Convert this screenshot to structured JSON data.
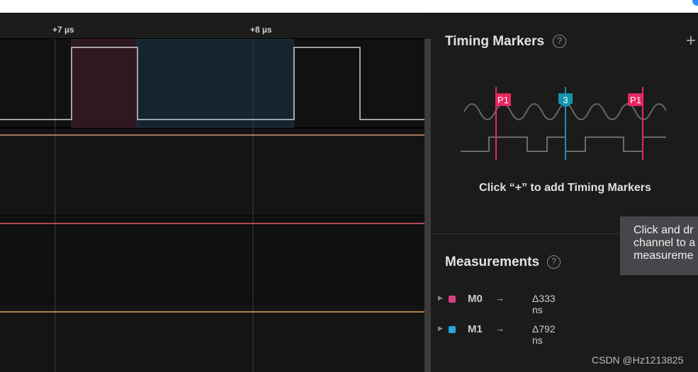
{
  "ruler": {
    "ticks": [
      "+7 µs",
      "+8 µs"
    ]
  },
  "channels": [
    {
      "color": "#d8d8d8"
    },
    {
      "color": "#d39a7c"
    },
    {
      "color": "#f05b6c"
    },
    {
      "color": "#e9a862"
    }
  ],
  "regions": {
    "m0_color": "#c2407a",
    "m1_color": "#2aa3d6"
  },
  "timing_markers": {
    "title": "Timing Markers",
    "help": "?",
    "add": "+",
    "hint": "Click “+” to add Timing Markers",
    "illustration": {
      "flags": [
        "P1",
        "3",
        "P1"
      ],
      "colors": {
        "p": "#e8275f",
        "num": "#1295ad"
      }
    }
  },
  "measurements": {
    "title": "Measurements",
    "help": "?",
    "items": [
      {
        "name": "M0",
        "arrow": "→",
        "value": "Δ333 ns",
        "color": "#d5417f"
      },
      {
        "name": "M1",
        "arrow": "→",
        "value": "Δ792 ns",
        "color": "#25a6dd"
      }
    ]
  },
  "tooltip": {
    "lines": [
      "Click and dr",
      "channel to a",
      "measureme"
    ]
  },
  "watermark": "CSDN @Hz1213825"
}
